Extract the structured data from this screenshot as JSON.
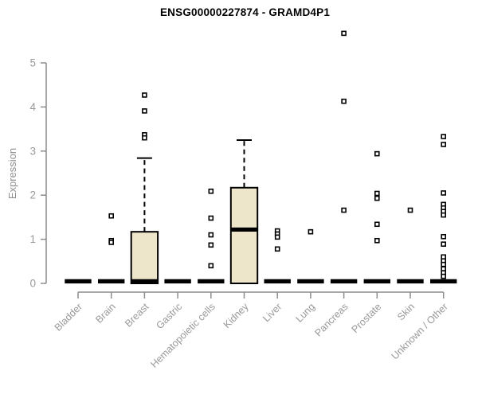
{
  "chart_data": {
    "type": "boxplot",
    "title": "ENSG00000227874 - GRAMD4P1",
    "ylabel": "Expression",
    "xlabel": "",
    "ylim": [
      0,
      5
    ],
    "y_ticks": [
      0,
      1,
      2,
      3,
      4,
      5
    ],
    "grid": false,
    "legend": false,
    "categories": [
      "Bladder",
      "Brain",
      "Breast",
      "Gastric",
      "Hematopoietic cells",
      "Kidney",
      "Liver",
      "Lung",
      "Pancreas",
      "Prostate",
      "Skin",
      "Unknown / Other"
    ],
    "series": [
      {
        "name": "Bladder",
        "q1": 0,
        "median": 0,
        "q3": 0,
        "whisker_low": 0,
        "whisker_high": 0,
        "outliers": []
      },
      {
        "name": "Brain",
        "q1": 0,
        "median": 0,
        "q3": 0,
        "whisker_low": 0,
        "whisker_high": 0,
        "outliers": [
          1.53,
          0.97,
          0.93
        ]
      },
      {
        "name": "Breast",
        "q1": 0,
        "median": 0.02,
        "q3": 1.17,
        "whisker_low": 0,
        "whisker_high": 2.84,
        "outliers": [
          4.27,
          3.91,
          3.37,
          3.3
        ]
      },
      {
        "name": "Gastric",
        "q1": 0,
        "median": 0,
        "q3": 0,
        "whisker_low": 0,
        "whisker_high": 0,
        "outliers": []
      },
      {
        "name": "Hematopoietic cells",
        "q1": 0,
        "median": 0,
        "q3": 0,
        "whisker_low": 0,
        "whisker_high": 0,
        "outliers": [
          2.09,
          1.48,
          1.1,
          0.87,
          0.4
        ]
      },
      {
        "name": "Kidney",
        "q1": 0,
        "median": 1.22,
        "q3": 2.17,
        "whisker_low": 0,
        "whisker_high": 3.25,
        "outliers": []
      },
      {
        "name": "Liver",
        "q1": 0,
        "median": 0,
        "q3": 0,
        "whisker_low": 0,
        "whisker_high": 0,
        "outliers": [
          1.19,
          1.12,
          1.05,
          0.78
        ]
      },
      {
        "name": "Lung",
        "q1": 0,
        "median": 0,
        "q3": 0,
        "whisker_low": 0,
        "whisker_high": 0,
        "outliers": [
          1.17
        ]
      },
      {
        "name": "Pancreas",
        "q1": 0,
        "median": 0,
        "q3": 0,
        "whisker_low": 0,
        "whisker_high": 0,
        "outliers": [
          5.67,
          4.13,
          1.66
        ]
      },
      {
        "name": "Prostate",
        "q1": 0,
        "median": 0,
        "q3": 0,
        "whisker_low": 0,
        "whisker_high": 0,
        "outliers": [
          2.94,
          2.04,
          1.93,
          1.34,
          0.97
        ]
      },
      {
        "name": "Skin",
        "q1": 0,
        "median": 0,
        "q3": 0,
        "whisker_low": 0,
        "whisker_high": 0,
        "outliers": [
          1.66
        ]
      },
      {
        "name": "Unknown / Other",
        "q1": 0,
        "median": 0,
        "q3": 0,
        "whisker_low": 0,
        "whisker_high": 0,
        "outliers": [
          3.33,
          3.15,
          2.05,
          1.79,
          1.71,
          1.63,
          1.55,
          1.06,
          0.89,
          0.6,
          0.51,
          0.43,
          0.33,
          0.24,
          0.16
        ]
      }
    ],
    "colors": {
      "box_fill": "#ede6ca",
      "box_border": "#000000",
      "axis": "#8c8c8c",
      "tick_label": "#999999",
      "title": "#000000",
      "outlier_fill": "#ffffff"
    }
  }
}
